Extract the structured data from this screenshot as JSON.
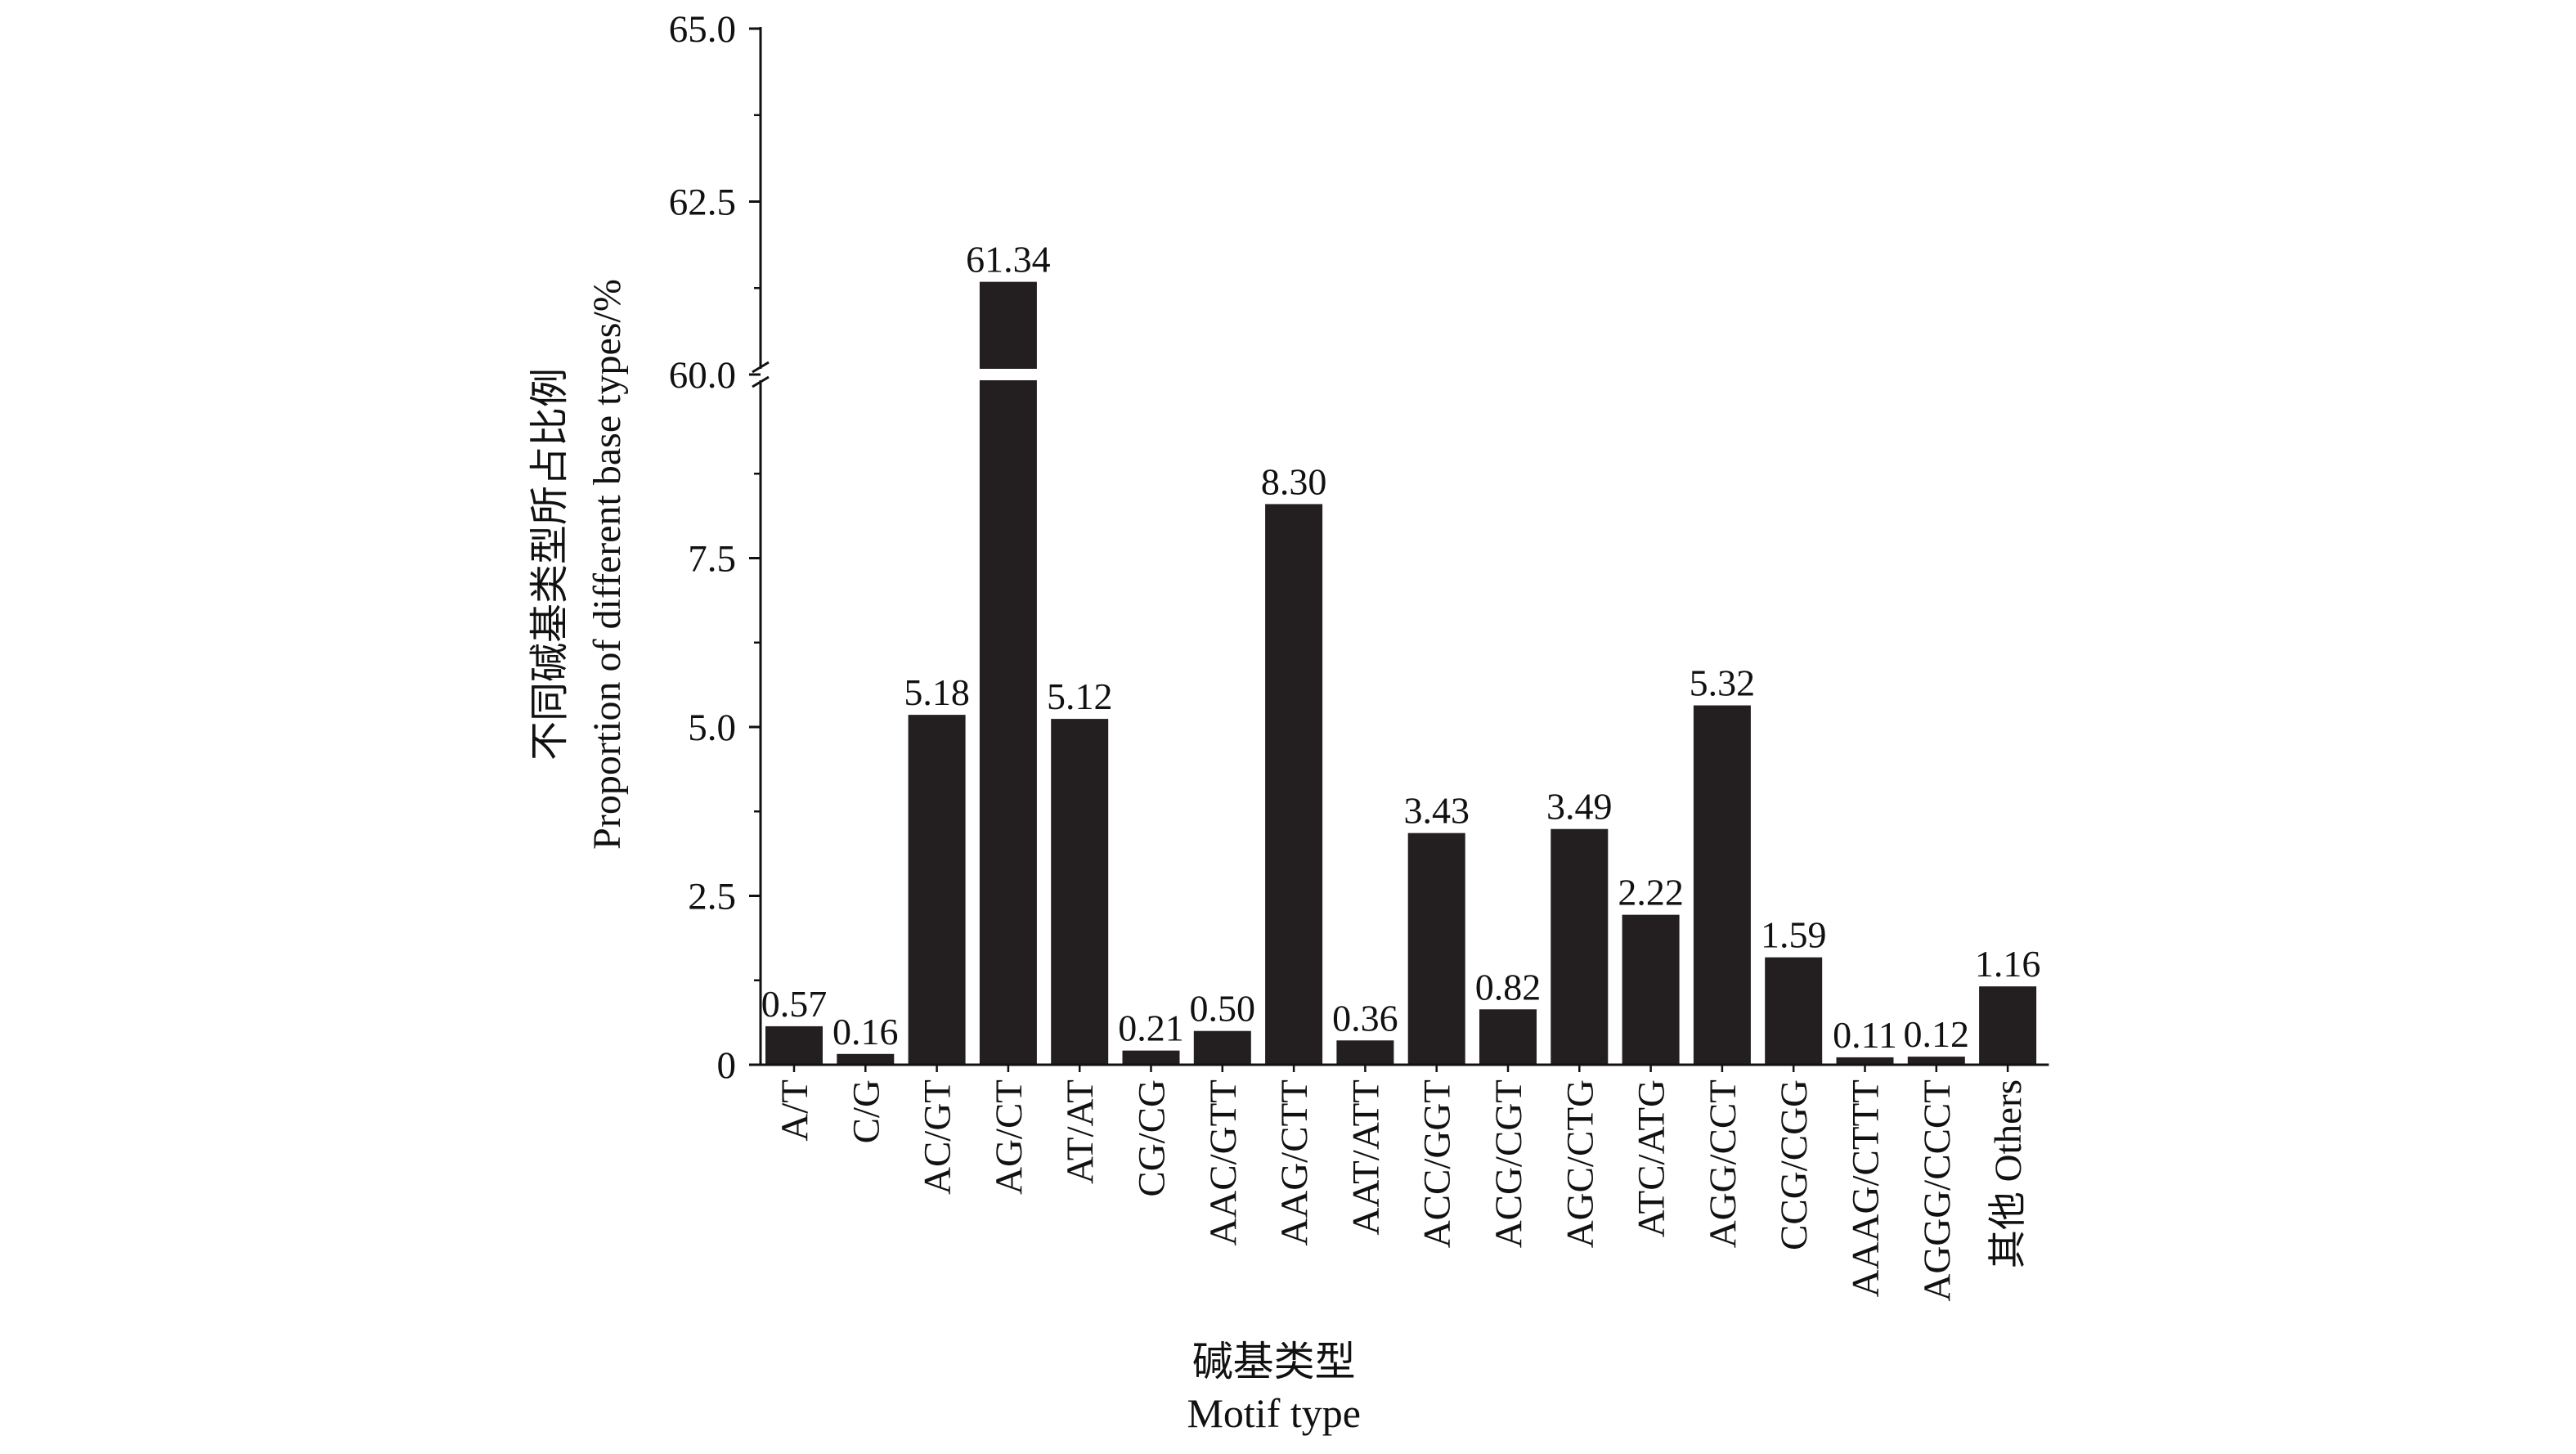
{
  "chart_data": {
    "type": "bar",
    "title": "",
    "xlabel": [
      "碱基类型",
      "Motif type"
    ],
    "ylabel": [
      "不同碱基类型所占比例",
      "Proportion of different base types/%"
    ],
    "categories": [
      "A/T",
      "C/G",
      "AC/GT",
      "AG/CT",
      "AT/AT",
      "CG/CG",
      "AAC/GTT",
      "AAG/CTT",
      "AAT/ATT",
      "ACC/GGT",
      "ACG/CGT",
      "AGC/CTG",
      "ATC/ATG",
      "AGG/CCT",
      "CCG/CGG",
      "AAAG/CTTT",
      "AGGG/CCCT",
      "其他 Others"
    ],
    "values": [
      0.57,
      0.16,
      5.18,
      61.34,
      5.12,
      0.21,
      0.5,
      8.3,
      0.36,
      3.43,
      0.82,
      3.49,
      2.22,
      5.32,
      1.59,
      0.11,
      0.12,
      1.16
    ],
    "value_labels": [
      "0.57",
      "0.16",
      "5.18",
      "61.34",
      "5.12",
      "0.21",
      "0.50",
      "8.30",
      "0.36",
      "3.43",
      "0.82",
      "3.49",
      "2.22",
      "5.32",
      "1.59",
      "0.11",
      "0.12",
      "1.16"
    ],
    "y_axis_break": {
      "lower_range": [
        0,
        10
      ],
      "upper_range": [
        60,
        65
      ]
    },
    "yticks_lower": [
      0,
      2.5,
      5.0,
      7.5
    ],
    "ytick_labels_lower": [
      "0",
      "2.5",
      "5.0",
      "7.5"
    ],
    "yticks_upper": [
      60.0,
      62.5,
      65.0
    ],
    "ytick_labels_upper": [
      "60.0",
      "62.5",
      "65.0"
    ],
    "bar_color": "#231f20",
    "grid": false,
    "legend": "none"
  }
}
